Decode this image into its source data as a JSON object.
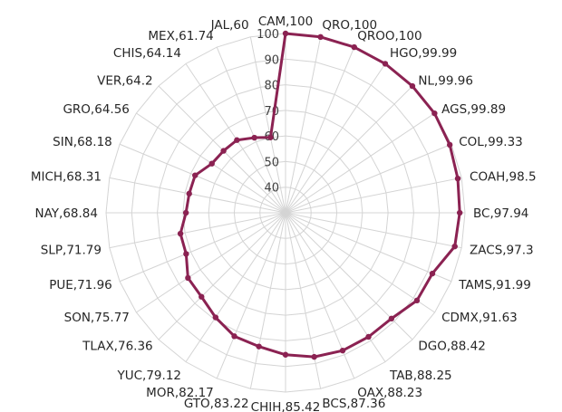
{
  "chart_data": {
    "type": "radar",
    "title": "",
    "rlim": [
      30,
      100
    ],
    "ticks": [
      40,
      50,
      60,
      70,
      80,
      90,
      100
    ],
    "grid": true,
    "legend": "none",
    "colors": {
      "series": "#8b2252",
      "grid": "#d4d4d4",
      "text": "#262626"
    },
    "categories": [
      "CAM",
      "QRO",
      "QROO",
      "HGO",
      "NL",
      "AGS",
      "COL",
      "COAH",
      "BC",
      "ZACS",
      "TAMS",
      "CDMX",
      "DGO",
      "TAB",
      "OAX",
      "BCS",
      "CHIH",
      "GTO",
      "MOR",
      "YUC",
      "TLAX",
      "SON",
      "PUE",
      "SLP",
      "NAY",
      "MICH",
      "SIN",
      "GRO",
      "VER",
      "CHIS",
      "MEX",
      "JAL"
    ],
    "values": [
      100,
      100,
      100,
      99.99,
      99.96,
      99.89,
      99.33,
      98.5,
      97.94,
      97.3,
      91.99,
      91.63,
      88.42,
      88.25,
      88.23,
      87.36,
      85.42,
      83.22,
      82.17,
      79.12,
      76.36,
      75.77,
      71.96,
      71.79,
      68.84,
      68.31,
      68.18,
      64.56,
      64.2,
      64.14,
      61.74,
      60
    ],
    "labels": [
      "CAM,100",
      "QRO,100",
      "QROO,100",
      "HGO,99.99",
      "NL,99.96",
      "AGS,99.89",
      "COL,99.33",
      "COAH,98.5",
      "BC,97.94",
      "ZACS,97.3",
      "TAMS,91.99",
      "CDMX,91.63",
      "DGO,88.42",
      "TAB,88.25",
      "OAX,88.23",
      "BCS,87.36",
      "CHIH,85.42",
      "GTO,83.22",
      "MOR,82.17",
      "YUC,79.12",
      "TLAX,76.36",
      "SON,75.77",
      "PUE,71.96",
      "SLP,71.79",
      "NAY,68.84",
      "MICH,68.31",
      "SIN,68.18",
      "GRO,64.56",
      "VER,64.2",
      "CHIS,64.14",
      "MEX,61.74",
      "JAL,60"
    ]
  }
}
